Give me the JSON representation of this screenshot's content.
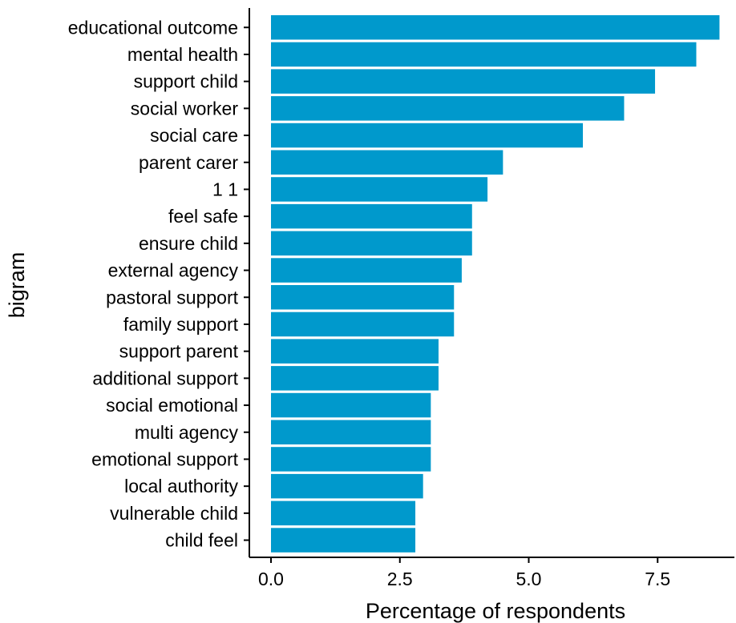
{
  "chart_data": {
    "type": "bar",
    "orientation": "horizontal",
    "title": "",
    "xlabel": "Percentage of respondents",
    "ylabel": "bigram",
    "xlim": [
      0,
      8.7
    ],
    "x_ticks": [
      "0.0",
      "2.5",
      "5.0",
      "7.5"
    ],
    "bar_color": "#0099CC",
    "grid": false,
    "legend": "none",
    "categories": [
      "educational outcome",
      "mental health",
      "support child",
      "social worker",
      "social care",
      "parent carer",
      "1 1",
      "feel safe",
      "ensure child",
      "external agency",
      "pastoral support",
      "family support",
      "support parent",
      "additional support",
      "social emotional",
      "multi agency",
      "emotional support",
      "local authority",
      "vulnerable child",
      "child feel"
    ],
    "values": [
      8.7,
      8.25,
      7.45,
      6.85,
      6.05,
      4.5,
      4.2,
      3.9,
      3.9,
      3.7,
      3.55,
      3.55,
      3.25,
      3.25,
      3.1,
      3.1,
      3.1,
      2.95,
      2.8,
      2.8
    ]
  }
}
